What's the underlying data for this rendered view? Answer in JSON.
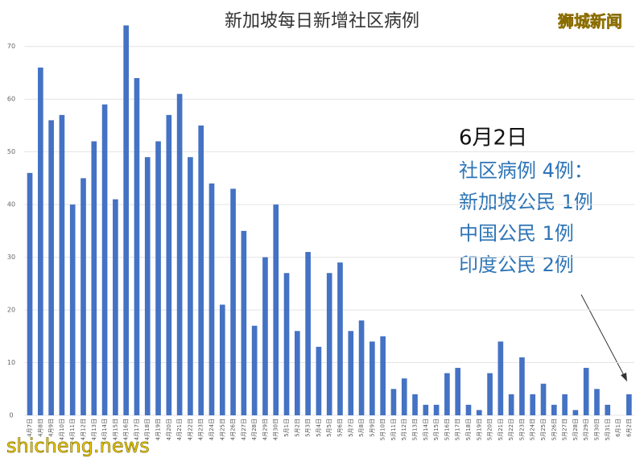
{
  "chart_data": {
    "type": "bar",
    "title": "新加坡每日新增社区病例",
    "categories": [
      "4月7日",
      "4月8日",
      "4月9日",
      "4月10日",
      "4月11日",
      "4月12日",
      "4月13日",
      "4月14日",
      "4月15日",
      "4月16日",
      "4月17日",
      "4月18日",
      "4月19日",
      "4月20日",
      "4月21日",
      "4月22日",
      "4月23日",
      "4月24日",
      "4月25日",
      "4月26日",
      "4月27日",
      "4月28日",
      "4月29日",
      "4月30日",
      "5月1日",
      "5月2日",
      "5月3日",
      "5月4日",
      "5月5日",
      "5月6日",
      "5月7日",
      "5月8日",
      "5月9日",
      "5月10日",
      "5月11日",
      "5月12日",
      "5月13日",
      "5月14日",
      "5月15日",
      "5月16日",
      "5月17日",
      "5月18日",
      "5月19日",
      "5月20日",
      "5月21日",
      "5月22日",
      "5月23日",
      "5月24日",
      "5月25日",
      "5月26日",
      "5月27日",
      "5月28日",
      "5月29日",
      "5月30日",
      "5月31日",
      "6月1日",
      "6月2日"
    ],
    "values": [
      46,
      66,
      56,
      57,
      40,
      45,
      52,
      59,
      41,
      74,
      64,
      49,
      52,
      57,
      61,
      49,
      55,
      44,
      21,
      43,
      35,
      17,
      30,
      40,
      27,
      16,
      31,
      13,
      27,
      29,
      16,
      18,
      14,
      15,
      5,
      7,
      4,
      2,
      2,
      8,
      9,
      2,
      1,
      8,
      14,
      4,
      11,
      4,
      6,
      2,
      4,
      1,
      9,
      5,
      2,
      0,
      4
    ],
    "color": "#4472c4",
    "ylim": [
      0,
      75
    ],
    "yticks": [
      0,
      10,
      20,
      30,
      40,
      50,
      60,
      70
    ],
    "grid": true,
    "annotation": {
      "date": "6月2日",
      "lines": [
        "社区病例 4例：",
        "新加坡公民 1例",
        "中国公民 1例",
        "印度公民 2例"
      ]
    },
    "watermark": {
      "brand": "狮城新闻",
      "site": "shicheng.news"
    }
  }
}
